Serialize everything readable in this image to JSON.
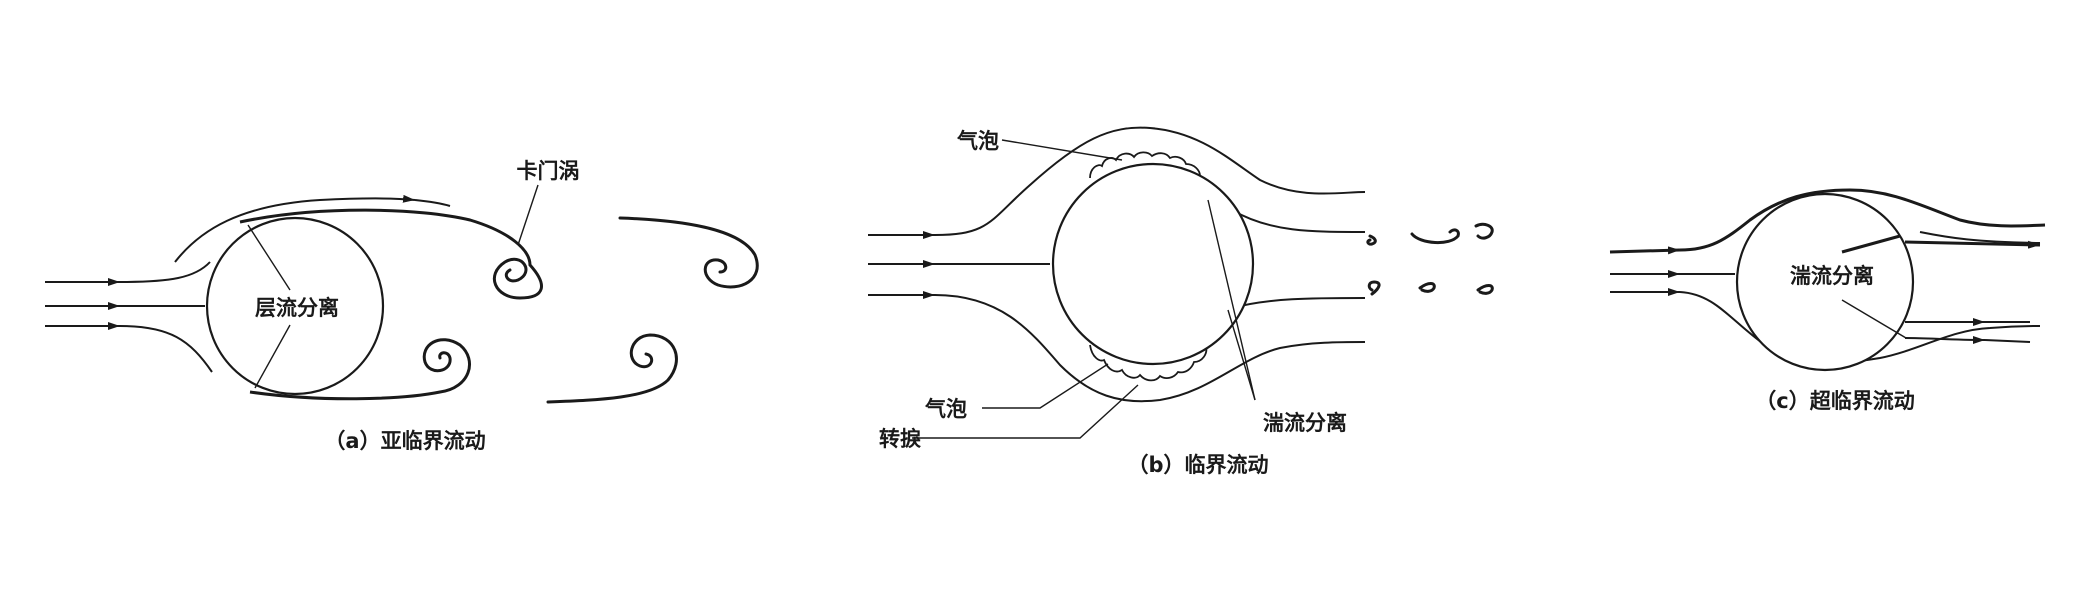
{
  "panels": [
    {
      "caption": "（a）亚临界流动",
      "labels": {
        "separation": "层流分离",
        "vortex": "卡门涡"
      }
    },
    {
      "caption": "（b）临界流动",
      "labels": {
        "bubble_top": "气泡",
        "bubble_bottom": "气泡",
        "transition": "转捩",
        "separation": "湍流分离"
      }
    },
    {
      "caption": "（c）超临界流动",
      "labels": {
        "separation": "湍流分离"
      }
    }
  ]
}
